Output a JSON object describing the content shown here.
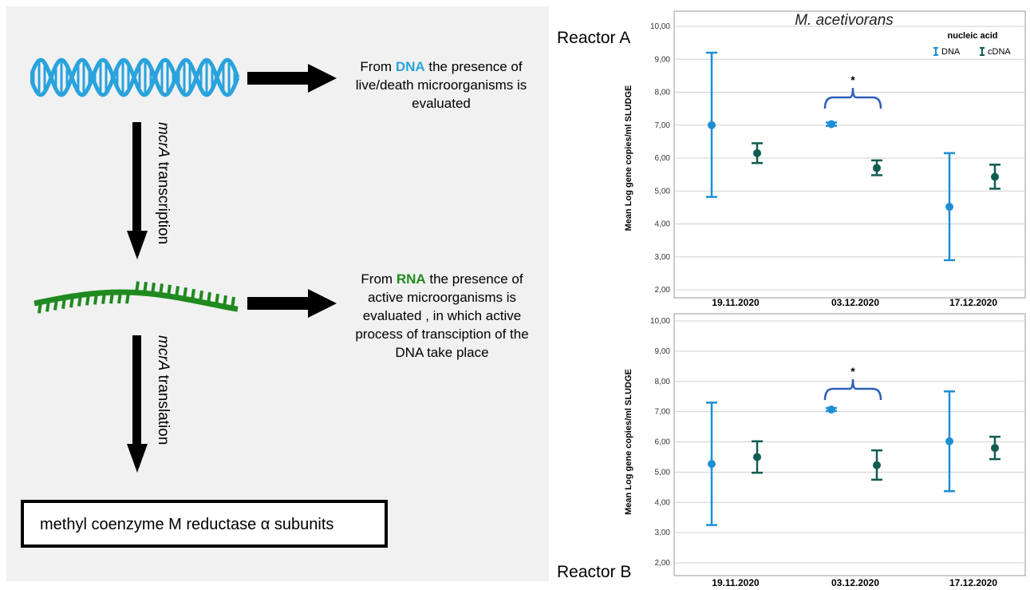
{
  "diagram": {
    "dna_text_prefix": "From ",
    "dna_word": "DNA",
    "dna_text_line1_suffix": " the presence of",
    "dna_text_line2": "live/death microorganisms is",
    "dna_text_line3": "evaluated",
    "rna_text_prefix": "From ",
    "rna_word": "RNA",
    "rna_text_line1_suffix": " the presence of",
    "rna_text_line2": "active microorganisms is",
    "rna_text_line3": "evaluated , in which active",
    "rna_text_line4": "process of transciption of the",
    "rna_text_line5": "DNA take place",
    "transcription_gene": "mcrA",
    "transcription_label": " transcription",
    "translation_gene": "mcrA",
    "translation_label": " translation",
    "protein_label": "methyl coenzyme M reductase α subunits",
    "colors": {
      "dna": "#29a3dd",
      "rna": "#1f8a1f"
    }
  },
  "reactor_a_label": "Reactor A",
  "reactor_b_label": "Reactor B",
  "chart_data": [
    {
      "type": "errorbar",
      "title": "M. acetivorans",
      "ylabel": "Mean Log gene copies/ml SLUDGE",
      "xlabel": "",
      "ylim": [
        2,
        10
      ],
      "yticks": [
        "2,00",
        "3,00",
        "4,00",
        "5,00",
        "6,00",
        "7,00",
        "8,00",
        "9,00",
        "10,00"
      ],
      "categories": [
        "19.11.2020",
        "03.12.2020",
        "17.12.2020"
      ],
      "legend": {
        "title": "nucleic acid",
        "placement": "top-right"
      },
      "series": [
        {
          "name": "DNA",
          "color": "#1e8fd6",
          "means": [
            7.0,
            7.03,
            4.52
          ],
          "low": [
            4.82,
            6.98,
            2.9
          ],
          "high": [
            9.2,
            7.08,
            6.15
          ]
        },
        {
          "name": "cDNA",
          "color": "#0f5c52",
          "means": [
            6.15,
            5.7,
            5.43
          ],
          "low": [
            5.85,
            5.48,
            5.07
          ],
          "high": [
            6.45,
            5.93,
            5.8
          ]
        }
      ],
      "significance": {
        "category": "03.12.2020",
        "marker": "*"
      },
      "grid": true
    },
    {
      "type": "errorbar",
      "title": "",
      "ylabel": "Mean Log gene copies/ml SLUDGE",
      "xlabel": "",
      "ylim": [
        2,
        10
      ],
      "yticks": [
        "2,00",
        "3,00",
        "4,00",
        "5,00",
        "6,00",
        "7,00",
        "8,00",
        "9,00",
        "10,00"
      ],
      "categories": [
        "19.11.2020",
        "03.12.2020",
        "17.12.2020"
      ],
      "series": [
        {
          "name": "DNA",
          "color": "#1e8fd6",
          "means": [
            5.27,
            7.07,
            6.02
          ],
          "low": [
            3.25,
            7.02,
            4.37
          ],
          "high": [
            7.3,
            7.12,
            7.67
          ]
        },
        {
          "name": "cDNA",
          "color": "#0f5c52",
          "means": [
            5.5,
            5.23,
            5.8
          ],
          "low": [
            4.98,
            4.75,
            5.43
          ],
          "high": [
            6.02,
            5.72,
            6.17
          ]
        }
      ],
      "significance": {
        "category": "03.12.2020",
        "marker": "*"
      },
      "grid": true
    }
  ]
}
